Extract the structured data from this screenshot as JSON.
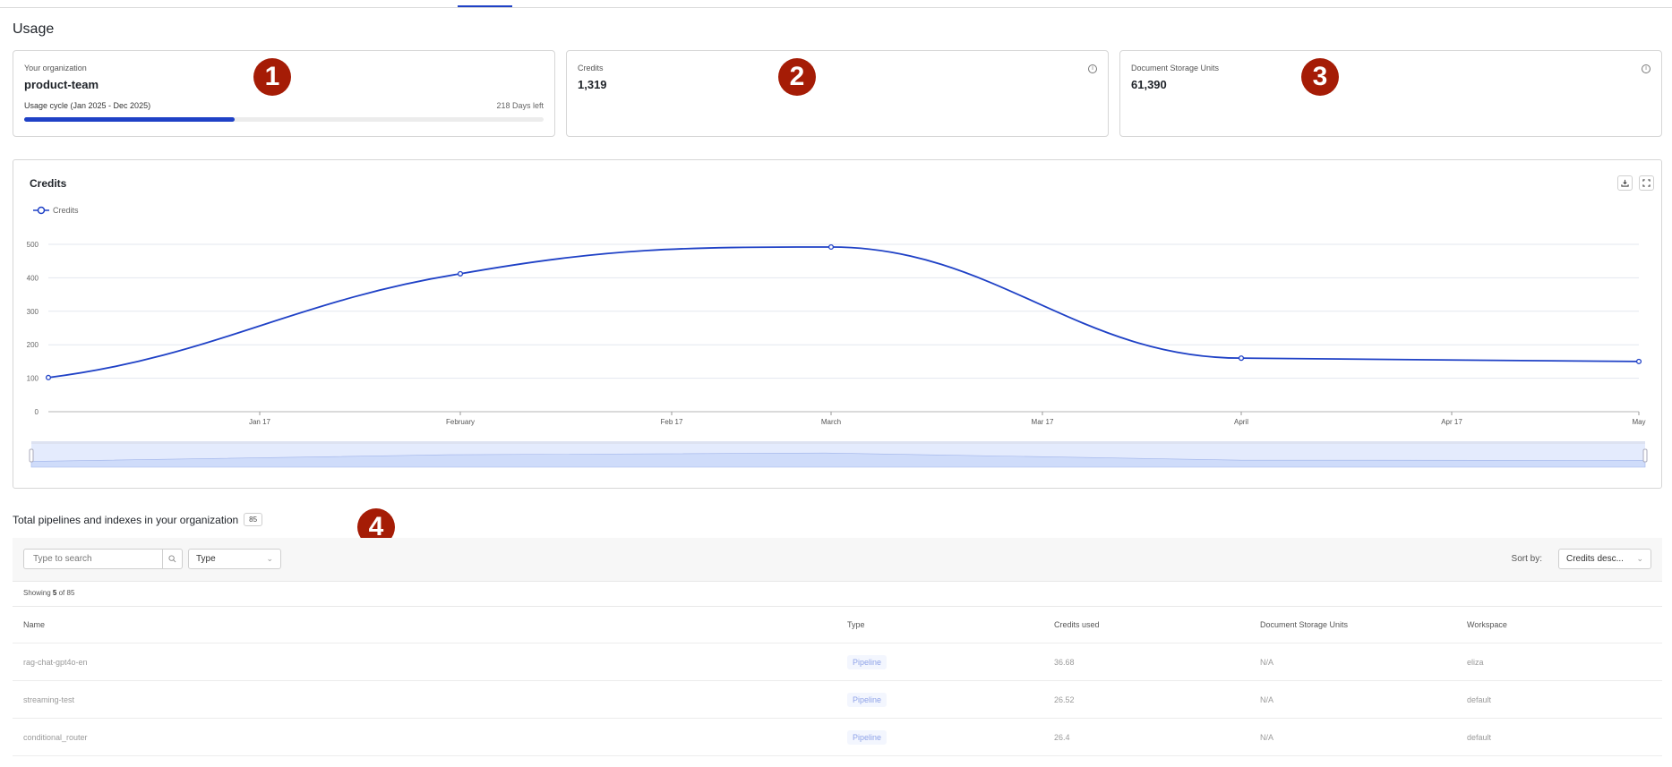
{
  "page": {
    "title": "Usage"
  },
  "cards": {
    "organization": {
      "label": "Your organization",
      "name": "product-team",
      "cycle_label": "Usage cycle (Jan 2025 - Dec 2025)",
      "days_left": "218 Days left",
      "progress_percent": 40.5
    },
    "credits": {
      "label": "Credits",
      "value": "1,319",
      "info_icon": "info-icon"
    },
    "document_storage": {
      "label": "Document Storage Units",
      "value": "61,390",
      "info_icon": "info-icon"
    }
  },
  "annotations": [
    "1",
    "2",
    "3",
    "4"
  ],
  "chart": {
    "title": "Credits",
    "legend_label": "Credits",
    "download_icon": "download-icon",
    "fullscreen_icon": "fullscreen-icon",
    "accent_color": "#1f41c6"
  },
  "chart_data": {
    "type": "line",
    "title": "Credits",
    "series": [
      {
        "name": "Credits",
        "x": [
          "January",
          "February",
          "March",
          "April",
          "May"
        ],
        "values": [
          102,
          412,
          492,
          160,
          150
        ]
      }
    ],
    "x_tick_labels": [
      "Jan 17",
      "February",
      "Feb 17",
      "March",
      "Mar 17",
      "April",
      "Apr 17",
      "May"
    ],
    "y_tick_labels": [
      "0",
      "100",
      "200",
      "300",
      "400",
      "500"
    ],
    "xlabel": "",
    "ylabel": "",
    "ylim": [
      0,
      500
    ],
    "grid": true,
    "legend_position": "top-left",
    "smooth": true,
    "has_data_zoom_slider": true
  },
  "table_section": {
    "title": "Total pipelines and indexes in your organization",
    "count": "85",
    "search_placeholder": "Type to search",
    "type_filter": "Type",
    "sort_label": "Sort by:",
    "sort_value": "Credits desc...",
    "showing_prefix": "Showing",
    "showing_count": "5",
    "showing_suffix": "of 85",
    "columns": [
      "Name",
      "Type",
      "Credits used",
      "Document Storage Units",
      "Workspace"
    ],
    "rows": [
      {
        "name": "rag-chat-gpt4o-en",
        "type": "Pipeline",
        "credits": "36.68",
        "dsu": "N/A",
        "workspace": "eliza"
      },
      {
        "name": "streaming-test",
        "type": "Pipeline",
        "credits": "26.52",
        "dsu": "N/A",
        "workspace": "default"
      },
      {
        "name": "conditional_router",
        "type": "Pipeline",
        "credits": "26.4",
        "dsu": "N/A",
        "workspace": "default"
      }
    ]
  }
}
